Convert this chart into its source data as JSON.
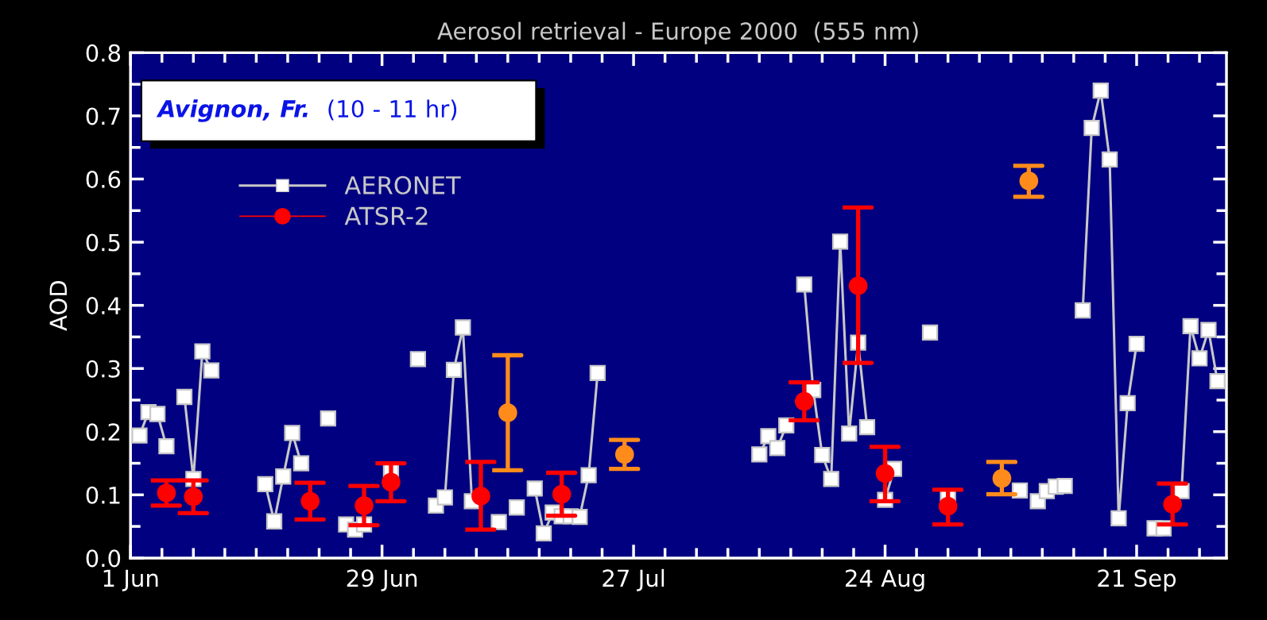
{
  "chart_data": {
    "type": "line",
    "title": "Aerosol retrieval - Europe 2000  (555 nm)",
    "ylabel": "AOD",
    "annotations": [
      "Avignon, Fr.",
      "(10 - 11 hr)"
    ],
    "xlim": [
      "2000-06-01",
      "2000-10-01"
    ],
    "xticks": [
      {
        "value": "2000-06-01",
        "label": "1 Jun"
      },
      {
        "value": "2000-06-04T12:00",
        "label": null
      },
      {
        "value": "2000-06-08",
        "label": null
      },
      {
        "value": "2000-06-11T12:00",
        "label": null
      },
      {
        "value": "2000-06-15",
        "label": null
      },
      {
        "value": "2000-06-18T12:00",
        "label": null
      },
      {
        "value": "2000-06-22",
        "label": null
      },
      {
        "value": "2000-06-25T12:00",
        "label": null
      },
      {
        "value": "2000-06-29",
        "label": "29 Jun"
      },
      {
        "value": "2000-07-02T12:00",
        "label": null
      },
      {
        "value": "2000-07-06",
        "label": null
      },
      {
        "value": "2000-07-09T12:00",
        "label": null
      },
      {
        "value": "2000-07-13",
        "label": null
      },
      {
        "value": "2000-07-16T12:00",
        "label": null
      },
      {
        "value": "2000-07-20",
        "label": null
      },
      {
        "value": "2000-07-23T12:00",
        "label": null
      },
      {
        "value": "2000-07-27",
        "label": "27 Jul"
      },
      {
        "value": "2000-07-30T12:00",
        "label": null
      },
      {
        "value": "2000-08-03",
        "label": null
      },
      {
        "value": "2000-08-06T12:00",
        "label": null
      },
      {
        "value": "2000-08-10",
        "label": null
      },
      {
        "value": "2000-08-13T12:00",
        "label": null
      },
      {
        "value": "2000-08-17",
        "label": null
      },
      {
        "value": "2000-08-20T12:00",
        "label": null
      },
      {
        "value": "2000-08-24",
        "label": "24 Aug"
      },
      {
        "value": "2000-08-27T12:00",
        "label": null
      },
      {
        "value": "2000-08-31",
        "label": null
      },
      {
        "value": "2000-09-03T12:00",
        "label": null
      },
      {
        "value": "2000-09-07",
        "label": null
      },
      {
        "value": "2000-09-10T12:00",
        "label": null
      },
      {
        "value": "2000-09-14",
        "label": null
      },
      {
        "value": "2000-09-17T12:00",
        "label": null
      },
      {
        "value": "2000-09-21",
        "label": "21 Sep"
      },
      {
        "value": "2000-09-24T12:00",
        "label": null
      },
      {
        "value": "2000-09-28",
        "label": null
      }
    ],
    "ylim": [
      0,
      0.8
    ],
    "yticks": [
      {
        "value": 0,
        "label": "0.0"
      },
      {
        "value": 0.05,
        "label": null
      },
      {
        "value": 0.1,
        "label": "0.1"
      },
      {
        "value": 0.15,
        "label": null
      },
      {
        "value": 0.2,
        "label": "0.2"
      },
      {
        "value": 0.25,
        "label": null
      },
      {
        "value": 0.3,
        "label": "0.3"
      },
      {
        "value": 0.35,
        "label": null
      },
      {
        "value": 0.4,
        "label": "0.4"
      },
      {
        "value": 0.45,
        "label": null
      },
      {
        "value": 0.5,
        "label": "0.5"
      },
      {
        "value": 0.55,
        "label": null
      },
      {
        "value": 0.6,
        "label": "0.6"
      },
      {
        "value": 0.65,
        "label": null
      },
      {
        "value": 0.7,
        "label": "0.7"
      },
      {
        "value": 0.75,
        "label": null
      },
      {
        "value": 0.8,
        "label": "0.8"
      }
    ],
    "grid": false,
    "legend": "top left",
    "series": [
      {
        "name": "AERONET",
        "color": "#c8c8c8",
        "marker": "square",
        "line_style": "solid",
        "x": [
          "2000-06-02",
          "2000-06-03",
          "2000-06-03T12:00",
          "2000-06-04",
          "2000-06-05",
          "2000-06-06",
          "2000-06-07",
          "2000-06-08",
          "2000-06-09",
          "2000-06-10",
          "2000-06-13",
          "2000-06-16",
          "2000-06-17",
          "2000-06-18",
          "2000-06-19",
          "2000-06-20",
          "2000-06-21",
          "2000-06-23",
          "2000-06-24",
          "2000-06-25",
          "2000-06-26",
          "2000-06-27",
          "2000-06-28",
          "2000-06-30",
          "2000-07-01",
          "2000-07-03",
          "2000-07-04",
          "2000-07-05",
          "2000-07-06",
          "2000-07-07",
          "2000-07-08",
          "2000-07-09",
          "2000-07-10",
          "2000-07-12",
          "2000-07-13",
          "2000-07-14",
          "2000-07-15",
          "2000-07-16",
          "2000-07-17",
          "2000-07-18",
          "2000-07-19",
          "2000-07-20",
          "2000-07-21",
          "2000-07-22",
          "2000-07-23",
          "2000-08-01",
          "2000-08-10",
          "2000-08-11",
          "2000-08-11T12:00",
          "2000-08-12",
          "2000-08-13",
          "2000-08-14",
          "2000-08-15",
          "2000-08-16",
          "2000-08-17",
          "2000-08-18",
          "2000-08-19",
          "2000-08-20",
          "2000-08-21",
          "2000-08-22",
          "2000-08-23",
          "2000-08-24",
          "2000-08-25",
          "2000-08-27",
          "2000-08-29",
          "2000-08-30",
          "2000-08-31",
          "2000-09-04",
          "2000-09-08",
          "2000-09-09",
          "2000-09-10",
          "2000-09-11",
          "2000-09-12",
          "2000-09-13",
          "2000-09-14",
          "2000-09-15",
          "2000-09-16",
          "2000-09-17",
          "2000-09-18",
          "2000-09-19",
          "2000-09-20",
          "2000-09-21",
          "2000-09-22",
          "2000-09-23",
          "2000-09-24",
          "2000-09-25",
          "2000-09-26",
          "2000-09-27",
          "2000-09-28",
          "2000-09-29",
          "2000-09-30"
        ],
        "values": [
          0.194,
          0.231,
          null,
          0.228,
          0.177,
          null,
          0.255,
          0.125,
          0.327,
          0.297,
          null,
          0.117,
          0.058,
          0.129,
          0.198,
          0.15,
          null,
          0.221,
          null,
          0.053,
          0.045,
          0.053,
          null,
          0.139,
          null,
          0.315,
          null,
          0.083,
          0.096,
          0.298,
          0.365,
          0.09,
          null,
          0.057,
          null,
          0.08,
          null,
          0.11,
          0.039,
          0.072,
          0.066,
          0.066,
          0.065,
          0.131,
          0.293,
          null,
          0.164,
          0.193,
          null,
          0.174,
          0.21,
          null,
          0.433,
          0.266,
          0.163,
          0.125,
          0.501,
          0.197,
          0.341,
          0.207,
          null,
          0.092,
          0.141,
          null,
          0.357,
          null,
          0.096,
          null,
          0.107,
          null,
          0.09,
          0.106,
          0.113,
          0.114,
          null,
          0.392,
          0.681,
          0.74,
          0.631,
          0.063,
          0.245,
          0.339,
          null,
          0.047,
          0.047,
          null,
          0.106,
          0.367,
          0.316,
          0.361,
          0.28
        ]
      },
      {
        "name": "ATSR-2",
        "type": "scatter",
        "color": "#ff0000",
        "marker": "circle",
        "x": [
          "2000-06-05",
          "2000-06-08",
          "2000-06-21",
          "2000-06-27",
          "2000-06-30",
          "2000-07-10",
          "2000-07-13",
          "2000-07-19",
          "2000-07-26",
          "2000-08-15",
          "2000-08-21",
          "2000-08-24",
          "2000-08-31",
          "2000-09-06",
          "2000-09-09",
          "2000-09-25"
        ],
        "values": [
          0.103,
          0.097,
          0.09,
          0.083,
          0.12,
          0.098,
          0.23,
          0.101,
          0.164,
          0.248,
          0.431,
          0.134,
          0.082,
          0.126,
          0.597,
          0.085
        ],
        "colors": [
          "#ff0000",
          "#ff0000",
          "#ff0000",
          "#ff0000",
          "#ff0000",
          "#ff0000",
          "#ff8c1a",
          "#ff0000",
          "#ff8c1a",
          "#ff0000",
          "#ff0000",
          "#ff0000",
          "#ff0000",
          "#ff8c1a",
          "#ff8c1a",
          "#ff0000"
        ],
        "errors": [
          [
            0.083,
            0.123
          ],
          [
            0.071,
            0.123
          ],
          [
            0.061,
            0.119
          ],
          [
            0.052,
            0.114
          ],
          [
            0.09,
            0.15
          ],
          [
            0.045,
            0.152
          ],
          [
            0.139,
            0.321
          ],
          [
            0.067,
            0.135
          ],
          [
            0.141,
            0.187
          ],
          [
            0.218,
            0.278
          ],
          [
            0.309,
            0.555
          ],
          [
            0.09,
            0.176
          ],
          [
            0.053,
            0.108
          ],
          [
            0.101,
            0.152
          ],
          [
            0.572,
            0.621
          ],
          [
            0.053,
            0.118
          ]
        ]
      }
    ]
  }
}
